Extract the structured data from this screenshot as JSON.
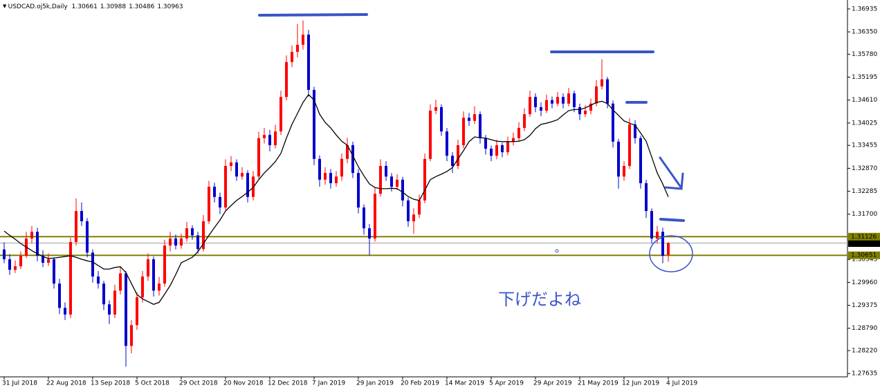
{
  "chart_data": {
    "type": "candlestick",
    "title": "USDCAD.oj5k,Daily",
    "header_values": [
      1.30661,
      1.30988,
      1.30486,
      1.30963
    ],
    "annotation": "下げだよね",
    "up_color": "#ff0000",
    "down_color": "#0000cc",
    "ylim": [
      1.2755,
      1.3711
    ],
    "yticks": [
      1.36935,
      {
        "value": 1.3635,
        "label": "1.36350"
      },
      {
        "value": 1.3578,
        "label": "1.35780"
      },
      1.35195,
      {
        "value": 1.3461,
        "label": "1.34610"
      },
      1.34025,
      1.33455,
      {
        "value": 1.3287,
        "label": "1.32870"
      },
      1.32285,
      {
        "value": 1.317,
        "label": "1.31700"
      },
      1.30545,
      {
        "value": 1.2996,
        "label": "1.29960"
      },
      1.29375,
      {
        "value": 1.2879,
        "label": "1.28790"
      },
      {
        "value": 1.2822,
        "label": "1.28220"
      },
      1.27635
    ],
    "levels": [
      {
        "value": 1.31126,
        "color": "#808000"
      },
      {
        "value": 1.30651,
        "color": "#808000"
      }
    ],
    "price_line": {
      "value": 1.30963,
      "color": "#a0a0a0"
    },
    "categories": [
      "31 Jul 2018",
      null,
      null,
      null,
      null,
      null,
      null,
      null,
      "22 Aug 2018",
      null,
      null,
      null,
      null,
      null,
      null,
      null,
      "13 Sep 2018",
      null,
      null,
      null,
      null,
      null,
      null,
      null,
      "5 Oct 2018",
      null,
      null,
      null,
      null,
      null,
      null,
      null,
      "29 Oct 2018",
      null,
      null,
      null,
      null,
      null,
      null,
      null,
      "20 Nov 2018",
      null,
      null,
      null,
      null,
      null,
      null,
      null,
      "12 Dec 2018",
      null,
      null,
      null,
      null,
      null,
      null,
      null,
      "7 Jan 2019",
      null,
      null,
      null,
      null,
      null,
      null,
      null,
      "29 Jan 2019",
      null,
      null,
      null,
      null,
      null,
      null,
      null,
      "20 Feb 2019",
      null,
      null,
      null,
      null,
      null,
      null,
      null,
      "14 Mar 2019",
      null,
      null,
      null,
      null,
      null,
      null,
      null,
      "5 Apr 2019",
      null,
      null,
      null,
      null,
      null,
      null,
      null,
      "29 Apr 2019",
      null,
      null,
      null,
      null,
      null,
      null,
      null,
      "21 May 2019",
      null,
      null,
      null,
      null,
      null,
      null,
      null,
      "12 Jun 2019",
      null,
      null,
      null,
      null,
      null,
      null,
      null,
      "4 Jul 2019"
    ],
    "candles": [
      [
        1.308,
        1.3098,
        1.3045,
        1.3055
      ],
      [
        1.3055,
        1.3068,
        1.3015,
        1.3028
      ],
      [
        1.3028,
        1.3052,
        1.302,
        1.3037
      ],
      [
        1.3037,
        1.3075,
        1.303,
        1.3064
      ],
      [
        1.3064,
        1.3125,
        1.3058,
        1.3108
      ],
      [
        1.3108,
        1.314,
        1.3095,
        1.3125
      ],
      [
        1.3125,
        1.3135,
        1.305,
        1.3064
      ],
      [
        1.3064,
        1.3078,
        1.3035,
        1.3046
      ],
      [
        1.3046,
        1.307,
        1.3038,
        1.3055
      ],
      [
        1.3055,
        1.306,
        1.298,
        1.2993
      ],
      [
        1.2993,
        1.3005,
        1.2915,
        1.2931
      ],
      [
        1.2931,
        1.2945,
        1.29,
        1.2914
      ],
      [
        1.2914,
        1.311,
        1.2905,
        1.3099
      ],
      [
        1.3099,
        1.321,
        1.309,
        1.3178
      ],
      [
        1.3178,
        1.32,
        1.314,
        1.3152
      ],
      [
        1.3152,
        1.316,
        1.306,
        1.3072
      ],
      [
        1.3072,
        1.308,
        1.2995,
        1.3011
      ],
      [
        1.3011,
        1.3025,
        1.298,
        1.2993
      ],
      [
        1.2993,
        1.3,
        1.2925,
        1.294
      ],
      [
        1.294,
        1.295,
        1.289,
        1.2914
      ],
      [
        1.2914,
        1.299,
        1.2905,
        1.2975
      ],
      [
        1.2975,
        1.3035,
        1.2965,
        1.3019
      ],
      [
        1.3019,
        1.3025,
        1.2781,
        1.2834
      ],
      [
        1.2834,
        1.29,
        1.2815,
        1.2887
      ],
      [
        1.2887,
        1.297,
        1.2875,
        1.2958
      ],
      [
        1.2958,
        1.3025,
        1.2945,
        1.3011
      ],
      [
        1.3011,
        1.307,
        1.3,
        1.3055
      ],
      [
        1.3055,
        1.3062,
        1.296,
        1.2975
      ],
      [
        1.2975,
        1.301,
        1.2962,
        1.2993
      ],
      [
        1.2993,
        1.3105,
        1.2985,
        1.309
      ],
      [
        1.309,
        1.3125,
        1.3075,
        1.3108
      ],
      [
        1.3108,
        1.3118,
        1.308,
        1.309
      ],
      [
        1.309,
        1.312,
        1.3082,
        1.3108
      ],
      [
        1.3108,
        1.315,
        1.31,
        1.3134
      ],
      [
        1.3134,
        1.3142,
        1.3105,
        1.3116
      ],
      [
        1.3116,
        1.3125,
        1.307,
        1.3081
      ],
      [
        1.3081,
        1.3168,
        1.3075,
        1.3152
      ],
      [
        1.3152,
        1.3255,
        1.3145,
        1.324
      ],
      [
        1.324,
        1.325,
        1.32,
        1.3214
      ],
      [
        1.3214,
        1.3225,
        1.317,
        1.3187
      ],
      [
        1.3187,
        1.331,
        1.318,
        1.3293
      ],
      [
        1.3293,
        1.3318,
        1.328,
        1.3302
      ],
      [
        1.3302,
        1.331,
        1.3255,
        1.3266
      ],
      [
        1.3266,
        1.329,
        1.3258,
        1.3275
      ],
      [
        1.3275,
        1.3282,
        1.32,
        1.3214
      ],
      [
        1.3214,
        1.328,
        1.3205,
        1.3266
      ],
      [
        1.3266,
        1.338,
        1.3258,
        1.3364
      ],
      [
        1.3364,
        1.339,
        1.335,
        1.3372
      ],
      [
        1.3372,
        1.3385,
        1.333,
        1.3346
      ],
      [
        1.3346,
        1.3398,
        1.3338,
        1.3381
      ],
      [
        1.3381,
        1.3485,
        1.3372,
        1.3469
      ],
      [
        1.3469,
        1.3575,
        1.346,
        1.3558
      ],
      [
        1.3558,
        1.36,
        1.3545,
        1.3584
      ],
      [
        1.3584,
        1.3655,
        1.357,
        1.3602
      ],
      [
        1.3602,
        1.3664,
        1.359,
        1.3628
      ],
      [
        1.3628,
        1.364,
        1.347,
        1.3487
      ],
      [
        1.3487,
        1.3495,
        1.3295,
        1.3311
      ],
      [
        1.3311,
        1.332,
        1.324,
        1.3258
      ],
      [
        1.3258,
        1.329,
        1.3245,
        1.3275
      ],
      [
        1.3275,
        1.3285,
        1.3235,
        1.3249
      ],
      [
        1.3249,
        1.328,
        1.324,
        1.3266
      ],
      [
        1.3266,
        1.3325,
        1.3255,
        1.3311
      ],
      [
        1.3311,
        1.3365,
        1.33,
        1.3346
      ],
      [
        1.3346,
        1.3355,
        1.3262,
        1.3275
      ],
      [
        1.3275,
        1.3285,
        1.3172,
        1.3187
      ],
      [
        1.3187,
        1.3195,
        1.3118,
        1.3134
      ],
      [
        1.3134,
        1.3145,
        1.3065,
        1.3108
      ],
      [
        1.3108,
        1.3238,
        1.31,
        1.3222
      ],
      [
        1.3222,
        1.331,
        1.3215,
        1.3293
      ],
      [
        1.3293,
        1.3305,
        1.3255,
        1.3266
      ],
      [
        1.3266,
        1.3275,
        1.3228,
        1.324
      ],
      [
        1.324,
        1.3272,
        1.3232,
        1.3258
      ],
      [
        1.3258,
        1.3265,
        1.319,
        1.3205
      ],
      [
        1.3205,
        1.3212,
        1.3138,
        1.3152
      ],
      [
        1.3152,
        1.3185,
        1.312,
        1.3169
      ],
      [
        1.3169,
        1.322,
        1.316,
        1.3205
      ],
      [
        1.3205,
        1.3325,
        1.3198,
        1.3311
      ],
      [
        1.3311,
        1.345,
        1.3305,
        1.3434
      ],
      [
        1.3434,
        1.3462,
        1.3425,
        1.3443
      ],
      [
        1.3443,
        1.345,
        1.337,
        1.3381
      ],
      [
        1.3381,
        1.339,
        1.3305,
        1.3319
      ],
      [
        1.3319,
        1.3328,
        1.3275,
        1.3293
      ],
      [
        1.3293,
        1.336,
        1.3285,
        1.3346
      ],
      [
        1.3346,
        1.3432,
        1.3338,
        1.3416
      ],
      [
        1.3416,
        1.3428,
        1.3395,
        1.3408
      ],
      [
        1.3408,
        1.3445,
        1.34,
        1.3425
      ],
      [
        1.3425,
        1.3432,
        1.335,
        1.3364
      ],
      [
        1.3364,
        1.3372,
        1.3322,
        1.3337
      ],
      [
        1.3337,
        1.3345,
        1.3305,
        1.3319
      ],
      [
        1.3319,
        1.336,
        1.331,
        1.3346
      ],
      [
        1.3346,
        1.3352,
        1.3315,
        1.3328
      ],
      [
        1.3328,
        1.3368,
        1.332,
        1.3355
      ],
      [
        1.3355,
        1.3378,
        1.3345,
        1.3364
      ],
      [
        1.3364,
        1.3405,
        1.3355,
        1.339
      ],
      [
        1.339,
        1.344,
        1.3382,
        1.3425
      ],
      [
        1.3425,
        1.3485,
        1.3418,
        1.3469
      ],
      [
        1.3469,
        1.3478,
        1.343,
        1.3443
      ],
      [
        1.3443,
        1.3455,
        1.342,
        1.3434
      ],
      [
        1.3434,
        1.3475,
        1.3428,
        1.3461
      ],
      [
        1.3461,
        1.347,
        1.344,
        1.3452
      ],
      [
        1.3452,
        1.3482,
        1.3445,
        1.3469
      ],
      [
        1.3469,
        1.3478,
        1.344,
        1.3452
      ],
      [
        1.3452,
        1.3492,
        1.3445,
        1.3478
      ],
      [
        1.3478,
        1.3485,
        1.343,
        1.3443
      ],
      [
        1.3443,
        1.3452,
        1.341,
        1.3425
      ],
      [
        1.3425,
        1.3448,
        1.3418,
        1.3434
      ],
      [
        1.3434,
        1.3465,
        1.3425,
        1.3452
      ],
      [
        1.3452,
        1.3512,
        1.3445,
        1.3496
      ],
      [
        1.3496,
        1.3565,
        1.3488,
        1.3514
      ],
      [
        1.3514,
        1.352,
        1.344,
        1.3452
      ],
      [
        1.3452,
        1.346,
        1.334,
        1.3355
      ],
      [
        1.3355,
        1.3362,
        1.3235,
        1.3266
      ],
      [
        1.3266,
        1.3305,
        1.3255,
        1.3293
      ],
      [
        1.3293,
        1.3415,
        1.3285,
        1.3399
      ],
      [
        1.3399,
        1.341,
        1.335,
        1.3364
      ],
      [
        1.3364,
        1.337,
        1.3235,
        1.3249
      ],
      [
        1.3249,
        1.3258,
        1.316,
        1.3178
      ],
      [
        1.3178,
        1.3185,
        1.3095,
        1.3108
      ],
      [
        1.3108,
        1.314,
        1.3095,
        1.3125
      ],
      [
        1.3125,
        1.3135,
        1.3045,
        1.3064
      ],
      [
        1.30661,
        1.30988,
        1.30486,
        1.30963
      ]
    ],
    "ma": {
      "color": "#000000",
      "values": [
        1.3127,
        1.3116,
        1.3106,
        1.3095,
        1.3086,
        1.3077,
        1.3069,
        1.3062,
        1.3057,
        1.3058,
        1.306,
        1.3062,
        1.3064,
        1.306,
        1.3055,
        1.3051,
        1.3048,
        1.3039,
        1.303,
        1.303,
        1.3034,
        1.3036,
        1.3021,
        1.2993,
        1.2965,
        1.2954,
        1.2947,
        1.294,
        1.2945,
        1.2966,
        1.2988,
        1.3016,
        1.3046,
        1.3053,
        1.306,
        1.3074,
        1.3095,
        1.3116,
        1.3136,
        1.3155,
        1.3178,
        1.3192,
        1.3205,
        1.3215,
        1.3226,
        1.3238,
        1.3258,
        1.3275,
        1.3289,
        1.3304,
        1.3325,
        1.3364,
        1.3399,
        1.3427,
        1.3455,
        1.3475,
        1.3461,
        1.3425,
        1.3404,
        1.339,
        1.3372,
        1.3356,
        1.3346,
        1.3319,
        1.3291,
        1.3268,
        1.3247,
        1.3238,
        1.3235,
        1.3235,
        1.3236,
        1.3235,
        1.3226,
        1.3215,
        1.3208,
        1.3205,
        1.3231,
        1.3258,
        1.3266,
        1.3272,
        1.3279,
        1.3289,
        1.3311,
        1.3332,
        1.3355,
        1.3367,
        1.3365,
        1.3364,
        1.336,
        1.3356,
        1.3355,
        1.3355,
        1.3355,
        1.3356,
        1.336,
        1.3371,
        1.3388,
        1.3399,
        1.3402,
        1.3406,
        1.3411,
        1.3423,
        1.3434,
        1.3437,
        1.3437,
        1.3441,
        1.3448,
        1.3455,
        1.3458,
        1.3452,
        1.3436,
        1.3422,
        1.3408,
        1.3402,
        1.3397,
        1.3377,
        1.3356,
        1.3316,
        1.3275,
        1.3247,
        1.3214
      ]
    }
  }
}
